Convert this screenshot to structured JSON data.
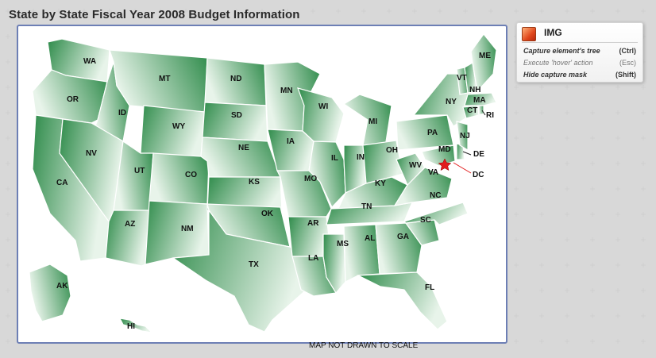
{
  "page": {
    "title": "State by State Fiscal Year 2008 Budget Information"
  },
  "map": {
    "scale_note": "MAP NOT DRAWN TO SCALE",
    "fill_dark": "#2e8b4a",
    "fill_light": "#e8f4ea",
    "states": [
      {
        "code": "WA"
      },
      {
        "code": "OR"
      },
      {
        "code": "CA"
      },
      {
        "code": "ID"
      },
      {
        "code": "NV"
      },
      {
        "code": "MT"
      },
      {
        "code": "WY"
      },
      {
        "code": "UT"
      },
      {
        "code": "AZ"
      },
      {
        "code": "CO"
      },
      {
        "code": "NM"
      },
      {
        "code": "ND"
      },
      {
        "code": "SD"
      },
      {
        "code": "NE"
      },
      {
        "code": "KS"
      },
      {
        "code": "OK"
      },
      {
        "code": "TX"
      },
      {
        "code": "MN"
      },
      {
        "code": "IA"
      },
      {
        "code": "MO"
      },
      {
        "code": "AR"
      },
      {
        "code": "LA"
      },
      {
        "code": "WI"
      },
      {
        "code": "IL"
      },
      {
        "code": "MS"
      },
      {
        "code": "MI"
      },
      {
        "code": "IN"
      },
      {
        "code": "KY"
      },
      {
        "code": "TN"
      },
      {
        "code": "AL"
      },
      {
        "code": "OH"
      },
      {
        "code": "GA"
      },
      {
        "code": "FL"
      },
      {
        "code": "SC"
      },
      {
        "code": "NC"
      },
      {
        "code": "VA"
      },
      {
        "code": "WV"
      },
      {
        "code": "PA"
      },
      {
        "code": "NY"
      },
      {
        "code": "MD"
      },
      {
        "code": "DE"
      },
      {
        "code": "NJ"
      },
      {
        "code": "CT"
      },
      {
        "code": "RI"
      },
      {
        "code": "MA"
      },
      {
        "code": "VT"
      },
      {
        "code": "NH"
      },
      {
        "code": "ME"
      },
      {
        "code": "DC"
      },
      {
        "code": "AK"
      },
      {
        "code": "HI"
      }
    ]
  },
  "capture_panel": {
    "tag": "IMG",
    "rows": [
      {
        "label": "Capture element's tree",
        "key": "(Ctrl)",
        "enabled": true
      },
      {
        "label": "Execute 'hover' action",
        "key": "(Esc)",
        "enabled": false
      },
      {
        "label": "Hide capture mask",
        "key": "(Shift)",
        "enabled": true
      }
    ]
  }
}
